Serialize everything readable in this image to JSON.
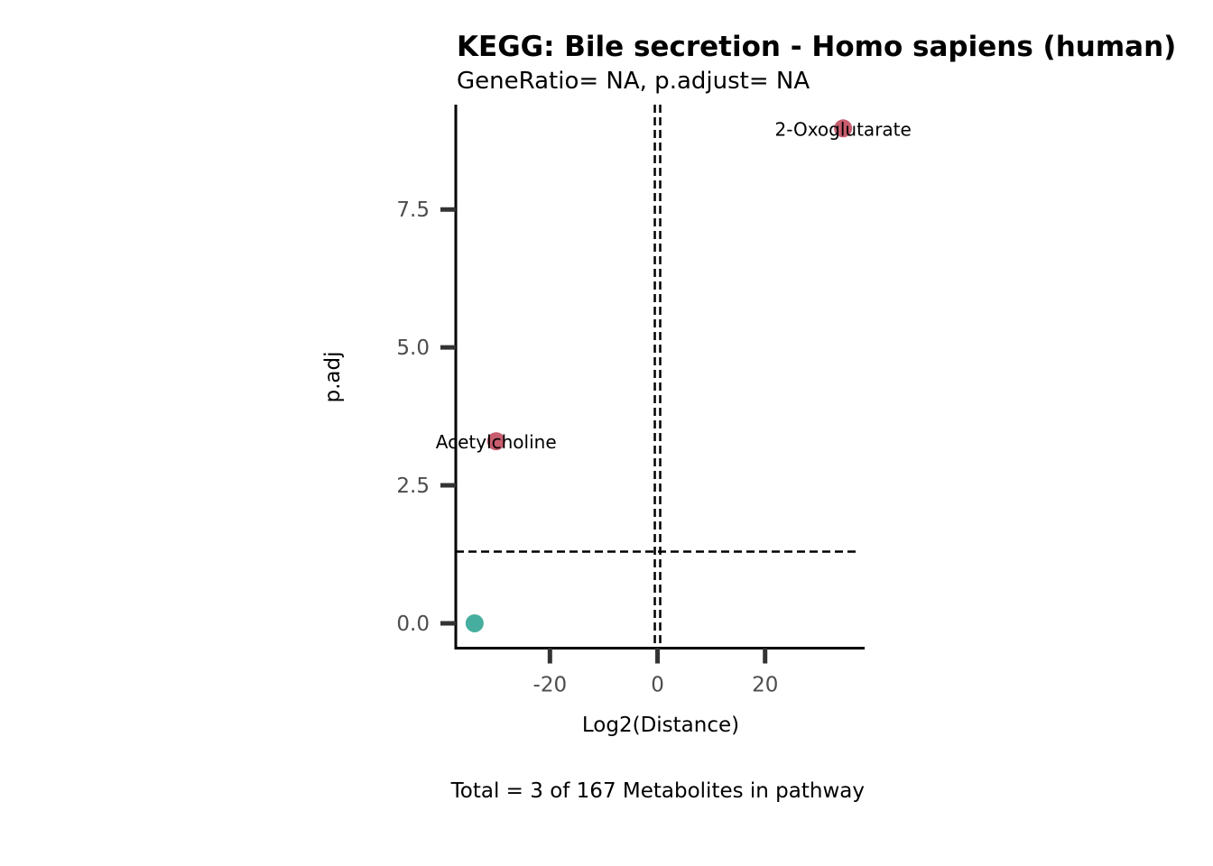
{
  "chart_data": {
    "type": "scatter",
    "title": "KEGG: Bile secretion - Homo sapiens (human)",
    "subtitle": "GeneRatio= NA, p.adjust= NA",
    "xlabel": "Log2(Distance)",
    "ylabel": "p.adj",
    "caption": "Total = 3 of 167 Metabolites in pathway",
    "xlim": [
      -37.5,
      38.5
    ],
    "ylim": [
      -0.45,
      9.4
    ],
    "x_ticks": [
      -20,
      0,
      20
    ],
    "x_tick_labels": [
      "-20",
      "0",
      "20"
    ],
    "y_ticks": [
      0,
      2.5,
      5,
      7.5
    ],
    "y_tick_labels": [
      "0.0",
      "2.5",
      "5.0",
      "7.5"
    ],
    "reference_lines": {
      "vertical": [
        -0.5,
        0.5
      ],
      "horizontal": [
        1.3
      ]
    },
    "points": [
      {
        "label": "2-Oxoglutarate",
        "x": 34.5,
        "y": 8.97,
        "color": "#c75d6e"
      },
      {
        "label": "Acetylcholine",
        "x": -30,
        "y": 3.3,
        "color": "#c75d6e"
      },
      {
        "label": "",
        "x": -34,
        "y": 0.0,
        "color": "#46ae9e"
      }
    ],
    "grid": false,
    "legend": "none"
  }
}
